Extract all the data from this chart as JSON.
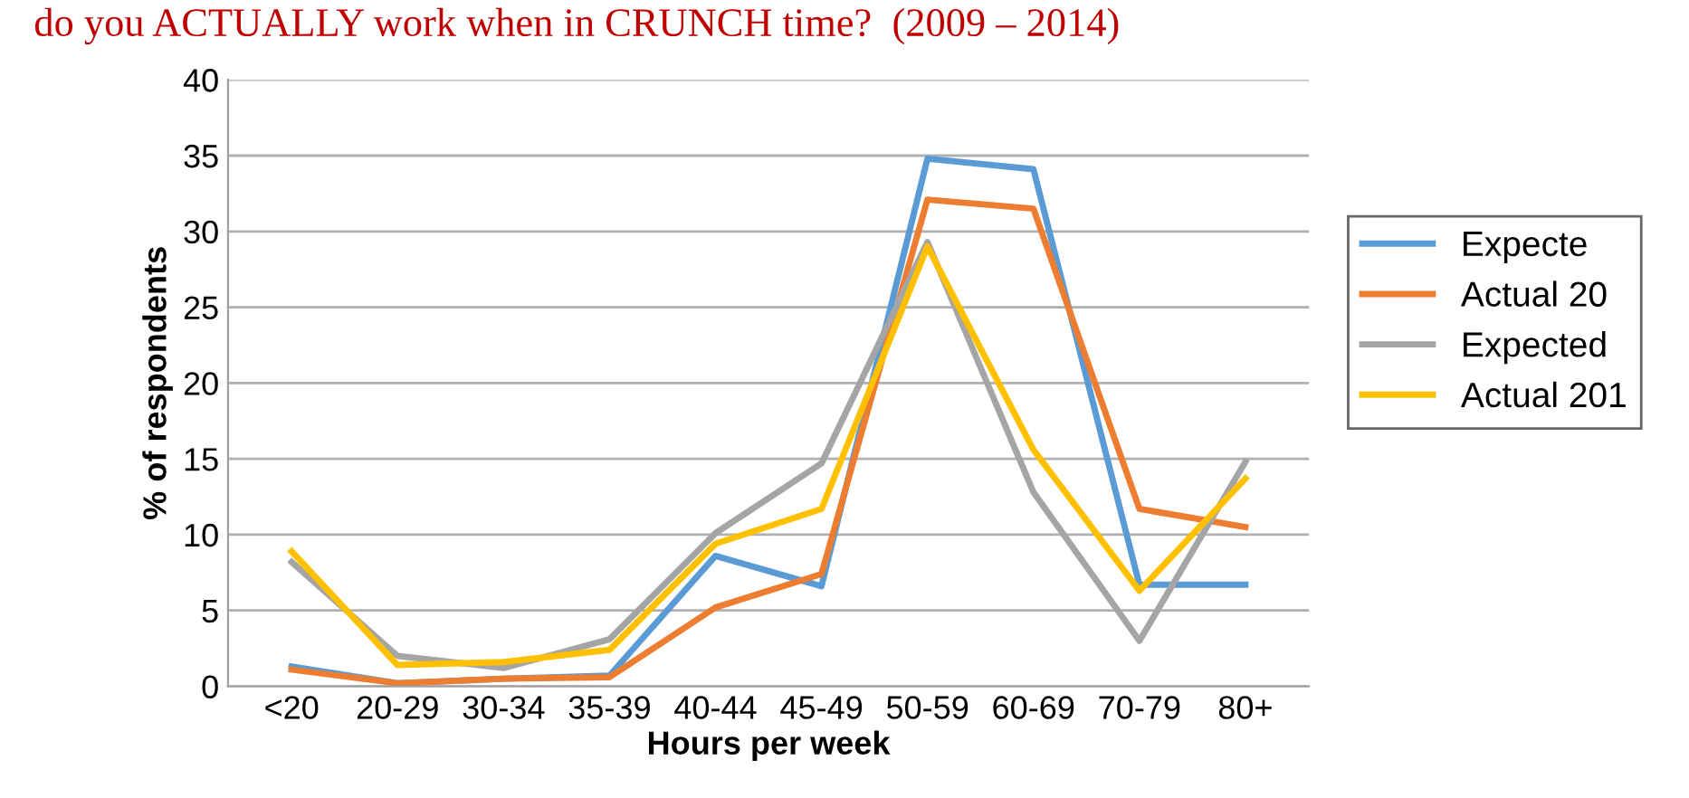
{
  "chart_data": {
    "type": "line",
    "title": "do you ACTUALLY work when in CRUNCH time?  (2009 – 2014)",
    "xlabel": "Hours per week",
    "ylabel": "% of respondents",
    "categories": [
      "<20",
      "20-29",
      "30-34",
      "35-39",
      "40-44",
      "45-49",
      "50-59",
      "60-69",
      "70-79",
      "80+"
    ],
    "series": [
      {
        "name": "Expecte",
        "color": "#5b9bd5",
        "values": [
          1.3,
          0.2,
          0.5,
          0.7,
          8.6,
          6.6,
          34.8,
          34.1,
          6.7,
          6.7
        ]
      },
      {
        "name": "Actual 20",
        "color": "#ed7d31",
        "values": [
          1.1,
          0.2,
          0.5,
          0.6,
          5.2,
          7.4,
          32.1,
          31.5,
          11.7,
          10.5
        ]
      },
      {
        "name": "Expected",
        "color": "#a5a5a5",
        "values": [
          8.2,
          2.0,
          1.2,
          3.1,
          10.1,
          14.7,
          29.3,
          12.8,
          3.0,
          14.8
        ]
      },
      {
        "name": "Actual 201",
        "color": "#ffc000",
        "values": [
          8.9,
          1.4,
          1.6,
          2.4,
          9.4,
          11.7,
          29.0,
          15.6,
          6.3,
          13.7
        ]
      }
    ],
    "ylim": [
      0,
      40
    ],
    "yticks": [
      0,
      5,
      10,
      15,
      20,
      25,
      30,
      35,
      40
    ],
    "grid": "y",
    "legend": "right",
    "marker": "none",
    "line_style": "solid"
  }
}
